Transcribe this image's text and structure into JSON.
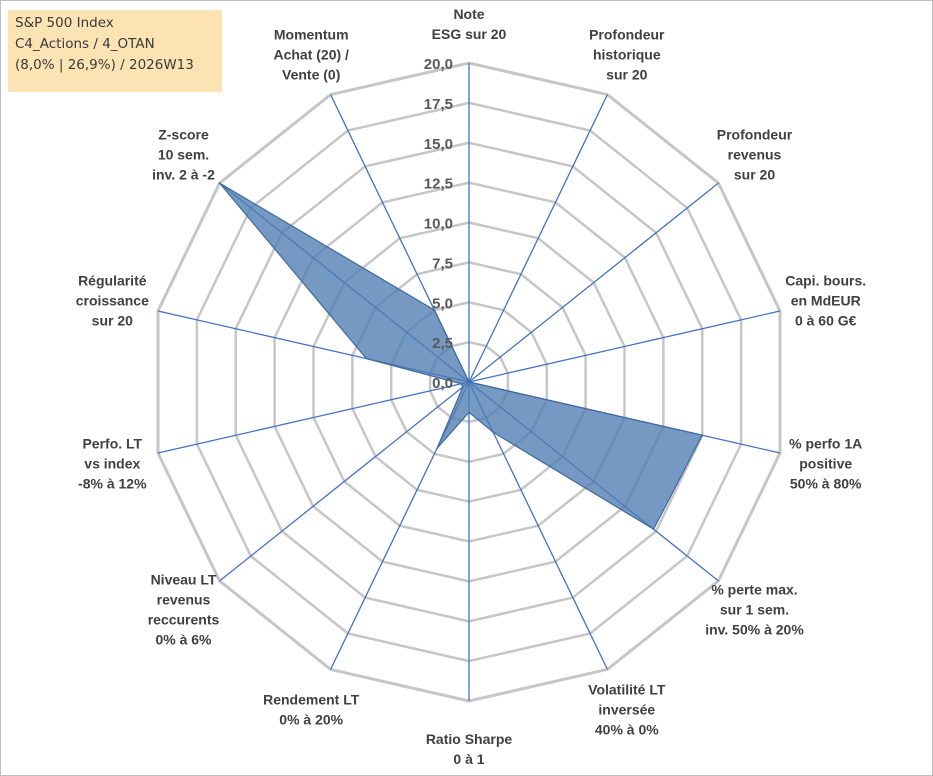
{
  "info": {
    "line1": "S&P 500 Index",
    "line2": "C4_Actions / 4_OTAN",
    "line3": "(8,0% | 26,9%) / 2026W13"
  },
  "chart_data": {
    "type": "radar",
    "title": "",
    "rmax": 20,
    "ticks": [
      "0,0",
      "2,5",
      "5,0",
      "7,5",
      "10,0",
      "12,5",
      "15,0",
      "17,5",
      "20,0"
    ],
    "axes": [
      {
        "lines": [
          "Note",
          "ESG sur 20"
        ]
      },
      {
        "lines": [
          "Profondeur",
          "historique",
          "sur 20"
        ]
      },
      {
        "lines": [
          "Profondeur",
          "revenus",
          "sur 20"
        ]
      },
      {
        "lines": [
          "Capi. bours.",
          "en MdEUR",
          "0 à 60 G€"
        ]
      },
      {
        "lines": [
          "% perfo 1A",
          "positive",
          "50% à 80%"
        ]
      },
      {
        "lines": [
          "% perte max.",
          "sur 1 sem.",
          "inv. 50% à 20%"
        ]
      },
      {
        "lines": [
          "Volatilité LT",
          "inversée",
          "40% à 0%"
        ]
      },
      {
        "lines": [
          "Ratio Sharpe",
          "0 à 1"
        ]
      },
      {
        "lines": [
          "Rendement LT",
          "0% à 20%"
        ]
      },
      {
        "lines": [
          "Niveau LT",
          "revenus",
          "reccurents",
          "0% à 6%"
        ]
      },
      {
        "lines": [
          "Perfo. LT",
          "vs index",
          "-8% à 12%"
        ]
      },
      {
        "lines": [
          "Régularité",
          "croissance",
          "sur 20"
        ]
      },
      {
        "lines": [
          "Z-score",
          "10 sem.",
          "inv. 2 à -2"
        ]
      },
      {
        "lines": [
          "Momentum",
          "Achat (20) /",
          "Vente (0)"
        ]
      }
    ],
    "series": [
      {
        "name": "S&P 500 Index",
        "values": [
          0,
          0,
          0,
          0,
          15,
          14.8,
          3.5,
          1.9,
          4.6,
          0.5,
          0.5,
          6.6,
          20,
          5.0
        ],
        "color": "#4f7cb3"
      }
    ],
    "grid": true
  }
}
